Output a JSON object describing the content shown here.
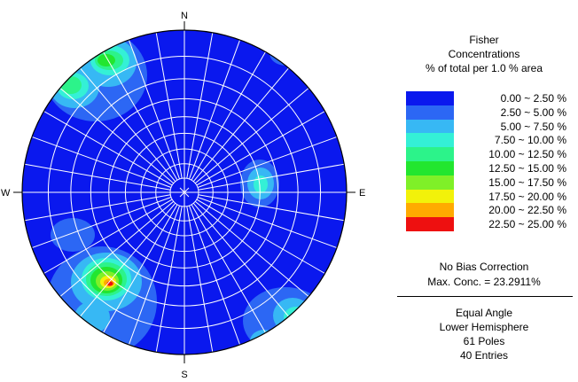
{
  "net": {
    "directions": {
      "n": "N",
      "s": "S",
      "e": "E",
      "w": "W"
    },
    "background_color": "#0a18ee",
    "grid_color": "#ffffff"
  },
  "legend": {
    "title_1": "Fisher",
    "title_2": "Concentrations",
    "title_3": "% of total per 1.0 % area",
    "bins": [
      {
        "label": "0.00 ~  2.50 %",
        "color": "#0a18ee"
      },
      {
        "label": "2.50 ~  5.00 %",
        "color": "#2c67f4"
      },
      {
        "label": "5.00 ~  7.50 %",
        "color": "#37b8f4"
      },
      {
        "label": "7.50 ~ 10.00 %",
        "color": "#34f0d6"
      },
      {
        "label": "10.00 ~ 12.50 %",
        "color": "#2cf38a"
      },
      {
        "label": "12.50 ~ 15.00 %",
        "color": "#22e62f"
      },
      {
        "label": "15.00 ~ 17.50 %",
        "color": "#7ff028"
      },
      {
        "label": "17.50 ~ 20.00 %",
        "color": "#f2f20a"
      },
      {
        "label": "20.00 ~ 22.50 %",
        "color": "#ffaa00"
      },
      {
        "label": "22.50 ~ 25.00 %",
        "color": "#ee1010"
      }
    ],
    "correction": "No Bias Correction",
    "max_conc": "Max. Conc. = 23.2911%",
    "projection": "Equal Angle",
    "hemisphere": "Lower Hemisphere",
    "poles": "61 Poles",
    "entries": "40 Entries"
  }
}
